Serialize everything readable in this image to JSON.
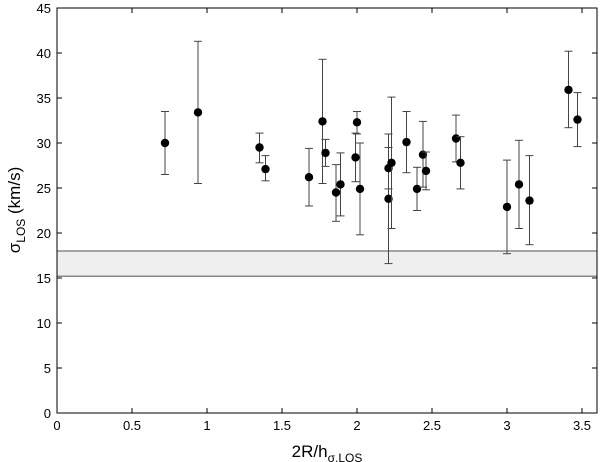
{
  "chart_data": {
    "type": "scatter",
    "title": "",
    "xlabel": {
      "main": "2R/h",
      "sub": "σ,LOS"
    },
    "ylabel": {
      "main": "σ",
      "sub": "LOS",
      "suffix": " (km/s)"
    },
    "xlim": [
      0,
      3.6
    ],
    "ylim": [
      0,
      45
    ],
    "xticks": [
      0,
      0.5,
      1,
      1.5,
      2,
      2.5,
      3,
      3.5
    ],
    "xtick_labels": [
      "0",
      "0.5",
      "1",
      "1.5",
      "2",
      "2.5",
      "3",
      "3.5"
    ],
    "yticks": [
      0,
      5,
      10,
      15,
      20,
      25,
      30,
      35,
      40,
      45
    ],
    "ytick_labels": [
      "0",
      "5",
      "10",
      "15",
      "20",
      "25",
      "30",
      "35",
      "40",
      "45"
    ],
    "grid": false,
    "band": {
      "y_low": 15.2,
      "y_high": 18.0,
      "color": "#efefef",
      "edge_color": "#888888"
    },
    "marker_color": "#000000",
    "points": [
      {
        "x": 0.72,
        "y": 30.0,
        "err_low": 26.5,
        "err_high": 33.5
      },
      {
        "x": 0.94,
        "y": 33.4,
        "err_low": 25.5,
        "err_high": 41.3
      },
      {
        "x": 1.35,
        "y": 29.5,
        "err_low": 27.8,
        "err_high": 31.1
      },
      {
        "x": 1.39,
        "y": 27.1,
        "err_low": 25.8,
        "err_high": 28.6
      },
      {
        "x": 1.68,
        "y": 26.2,
        "err_low": 23.0,
        "err_high": 29.4
      },
      {
        "x": 1.77,
        "y": 32.4,
        "err_low": 25.5,
        "err_high": 39.3
      },
      {
        "x": 1.79,
        "y": 28.9,
        "err_low": 27.4,
        "err_high": 30.4
      },
      {
        "x": 1.86,
        "y": 24.5,
        "err_low": 21.3,
        "err_high": 27.6
      },
      {
        "x": 1.89,
        "y": 25.4,
        "err_low": 21.9,
        "err_high": 28.9
      },
      {
        "x": 1.99,
        "y": 28.4,
        "err_low": 25.7,
        "err_high": 31.1
      },
      {
        "x": 2.0,
        "y": 32.3,
        "err_low": 31.0,
        "err_high": 33.5
      },
      {
        "x": 2.02,
        "y": 24.9,
        "err_low": 19.8,
        "err_high": 30.0
      },
      {
        "x": 2.21,
        "y": 23.8,
        "err_low": 16.6,
        "err_high": 31.0
      },
      {
        "x": 2.21,
        "y": 27.2,
        "err_low": 24.9,
        "err_high": 29.5
      },
      {
        "x": 2.23,
        "y": 27.8,
        "err_low": 20.5,
        "err_high": 35.1
      },
      {
        "x": 2.33,
        "y": 30.1,
        "err_low": 26.7,
        "err_high": 33.5
      },
      {
        "x": 2.4,
        "y": 24.9,
        "err_low": 22.5,
        "err_high": 27.3
      },
      {
        "x": 2.44,
        "y": 28.7,
        "err_low": 25.1,
        "err_high": 32.4
      },
      {
        "x": 2.46,
        "y": 26.9,
        "err_low": 24.8,
        "err_high": 29.0
      },
      {
        "x": 2.66,
        "y": 30.5,
        "err_low": 27.9,
        "err_high": 33.1
      },
      {
        "x": 2.69,
        "y": 27.8,
        "err_low": 24.9,
        "err_high": 30.7
      },
      {
        "x": 3.0,
        "y": 22.9,
        "err_low": 17.7,
        "err_high": 28.1
      },
      {
        "x": 3.08,
        "y": 25.4,
        "err_low": 20.5,
        "err_high": 30.3
      },
      {
        "x": 3.15,
        "y": 23.6,
        "err_low": 18.7,
        "err_high": 28.6
      },
      {
        "x": 3.41,
        "y": 35.9,
        "err_low": 31.7,
        "err_high": 40.2
      },
      {
        "x": 3.47,
        "y": 32.6,
        "err_low": 29.6,
        "err_high": 35.6
      }
    ]
  }
}
